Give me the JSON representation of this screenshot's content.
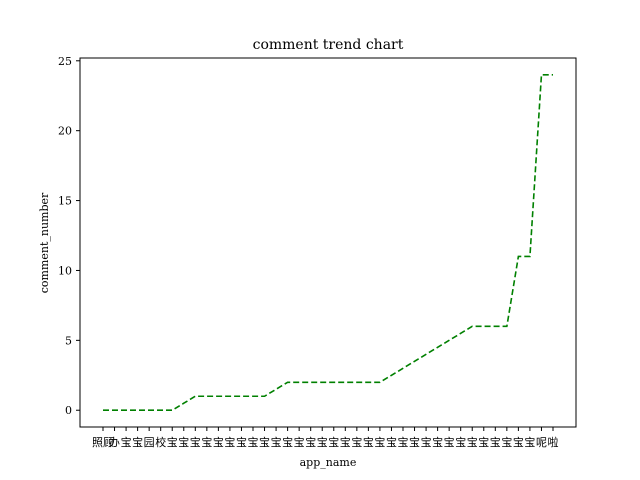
{
  "chart_data": {
    "type": "line",
    "title": "comment trend chart",
    "xlabel": "app_name",
    "ylabel": "comment_number",
    "ylim": [
      -1.2,
      25.2
    ],
    "yticks": [
      0,
      5,
      10,
      15,
      20,
      25
    ],
    "grid": false,
    "line_color": "#008000",
    "line_style": "dashed",
    "categories": [
      "照顾",
      "办",
      "宝",
      "宝",
      "园",
      "校",
      "宝",
      "宝",
      "宝",
      "宝",
      "宝",
      "宝",
      "宝",
      "宝",
      "宝",
      "宝",
      "宝",
      "宝",
      "宝",
      "宝",
      "宝",
      "宝",
      "宝",
      "宝",
      "宝",
      "宝",
      "宝",
      "宝",
      "宝",
      "宝",
      "宝",
      "宝",
      "宝",
      "宝",
      "宝",
      "宝",
      "宝",
      "宝",
      "呢",
      "啦"
    ],
    "values": [
      0,
      0,
      0,
      0,
      0,
      0,
      0,
      0.5,
      1,
      1,
      1,
      1,
      1,
      1,
      1,
      1.5,
      2,
      2,
      2,
      2,
      2,
      2,
      2,
      2,
      2,
      2.5,
      3,
      3.5,
      4,
      4.5,
      5,
      5.5,
      6,
      6,
      6,
      6,
      11,
      11,
      24,
      24
    ]
  }
}
